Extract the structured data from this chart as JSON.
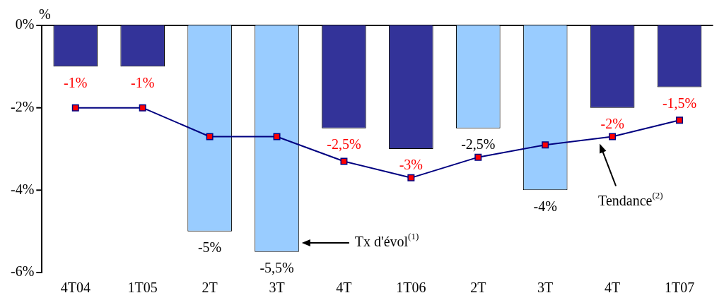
{
  "chart_data": {
    "type": "bar",
    "ylabel": "%",
    "categories": [
      "4T04",
      "1T05",
      "2T",
      "3T",
      "4T",
      "1T06",
      "2T",
      "3T",
      "4T",
      "1T07"
    ],
    "series": [
      {
        "colors": [
          "#333399",
          "#333399",
          "#99ccff",
          "#99ccff",
          "#333399",
          "#333399",
          "#99ccff",
          "#99ccff",
          "#333399",
          "#333399"
        ],
        "values": [
          -1,
          -1,
          -5,
          -5.5,
          -2.5,
          -3,
          -2.5,
          -4,
          -2,
          -1.5
        ],
        "value_labels": [
          "-1%",
          "-1%",
          "-5%",
          "-5,5%",
          "-2,5%",
          "-3%",
          "-2,5%",
          "-4%",
          "-2%",
          "-1,5%"
        ]
      },
      {
        "type": "line",
        "color": "#000080",
        "values": [
          -2,
          -2,
          -2.7,
          -2.7,
          -3.3,
          -3.7,
          -3.2,
          -2.9,
          -2.7,
          -2.3
        ]
      }
    ],
    "ylim": [
      -6,
      0
    ],
    "yticks": [
      {
        "value": -6,
        "label": "-6%"
      },
      {
        "value": -4,
        "label": "-4%"
      },
      {
        "value": -2,
        "label": "-2%"
      },
      {
        "value": 0,
        "label": "0%"
      }
    ],
    "grid": false,
    "legend": false,
    "marker": "square",
    "annotations": [
      "Tx d'évol$^{(1)}$",
      "Tendance$^{(2)}$"
    ]
  }
}
